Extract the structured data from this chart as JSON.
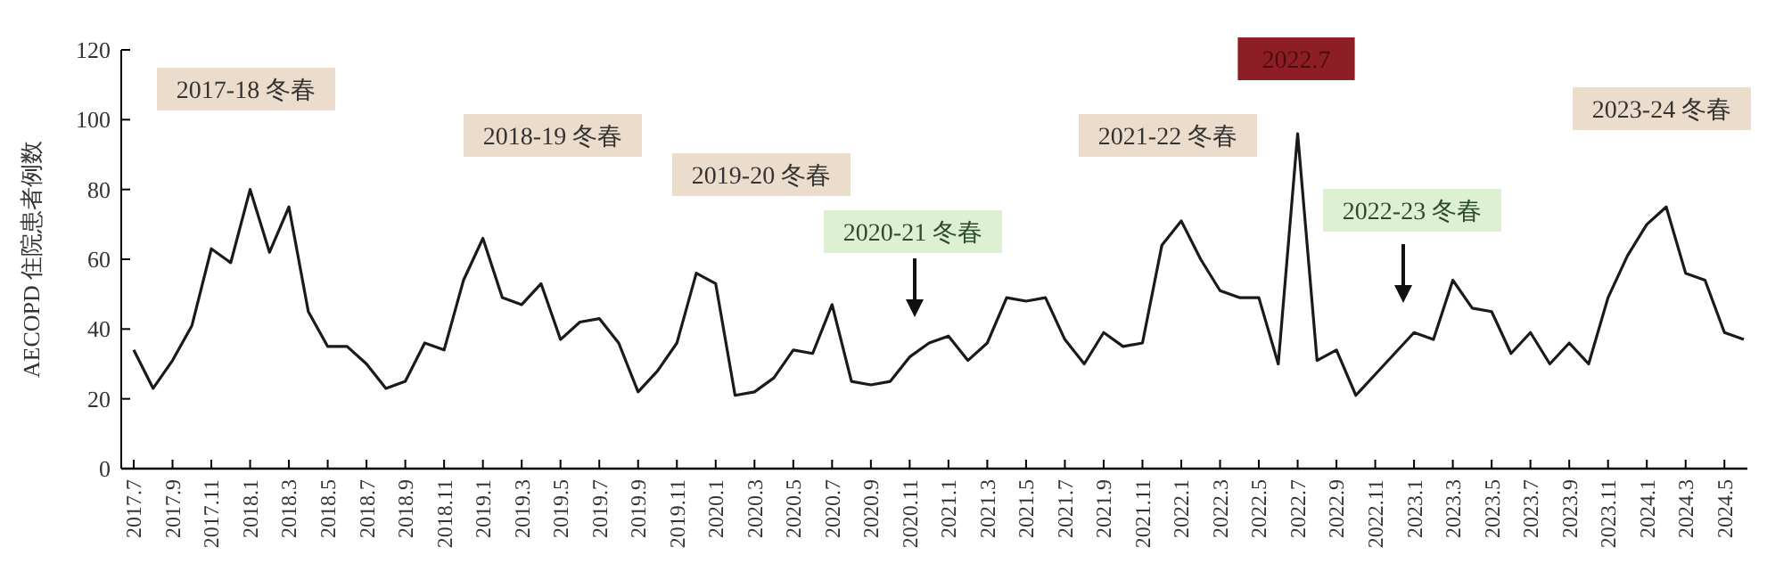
{
  "chart_data": {
    "type": "line",
    "ylabel": "AECOPD 住院患者例数",
    "categories": [
      "2017.7",
      null,
      "2017.9",
      null,
      "2017.11",
      null,
      "2018.1",
      null,
      "2018.3",
      null,
      "2018.5",
      null,
      "2018.7",
      null,
      "2018.9",
      null,
      "2018.11",
      null,
      "2019.1",
      null,
      "2019.3",
      null,
      "2019.5",
      null,
      "2019.7",
      null,
      "2019.9",
      null,
      "2019.11",
      null,
      "2020.1",
      null,
      "2020.3",
      null,
      "2020.5",
      null,
      "2020.7",
      null,
      "2020.9",
      null,
      "2020.11",
      null,
      "2021.1",
      null,
      "2021.3",
      null,
      "2021.5",
      null,
      "2021.7",
      null,
      "2021.9",
      null,
      "2021.11",
      null,
      "2022.1",
      null,
      "2022.3",
      null,
      "2022.5",
      null,
      "2022.7",
      null,
      "2022.9",
      null,
      "2022.11",
      null,
      "2023.1",
      null,
      "2023.3",
      null,
      "2023.5",
      null,
      "2023.7",
      null,
      "2023.9",
      null,
      "2023.11",
      null,
      "2024.1",
      null,
      "2024.3",
      null,
      "2024.5",
      null
    ],
    "series": [
      {
        "color": "#1a1a1a",
        "values": [
          34,
          23,
          31,
          41,
          63,
          59,
          80,
          62,
          75,
          45,
          35,
          35,
          30,
          23,
          25,
          36,
          34,
          54,
          66,
          49,
          47,
          53,
          37,
          42,
          43,
          36,
          22,
          28,
          36,
          56,
          53,
          21,
          22,
          26,
          34,
          33,
          47,
          25,
          24,
          25,
          32,
          36,
          38,
          31,
          36,
          49,
          48,
          49,
          37,
          30,
          39,
          35,
          36,
          64,
          71,
          60,
          51,
          49,
          49,
          30,
          96,
          31,
          34,
          21,
          27,
          33,
          39,
          37,
          54,
          46,
          45,
          33,
          39,
          30,
          36,
          30,
          49,
          61,
          70,
          75,
          56,
          54,
          39,
          37
        ]
      }
    ],
    "ylim": [
      0,
      120
    ],
    "yticks": [
      0,
      20,
      40,
      60,
      80,
      100,
      120
    ],
    "grid": false,
    "marker": "none",
    "line_style": "solid",
    "annotations": [
      "2017-18 冬春",
      "2018-19 冬春",
      "2019-20 冬春",
      "2020-21 冬春",
      "2021-22 冬春",
      "2022.7",
      "2022-23 冬春",
      "2023-24 冬春"
    ]
  }
}
